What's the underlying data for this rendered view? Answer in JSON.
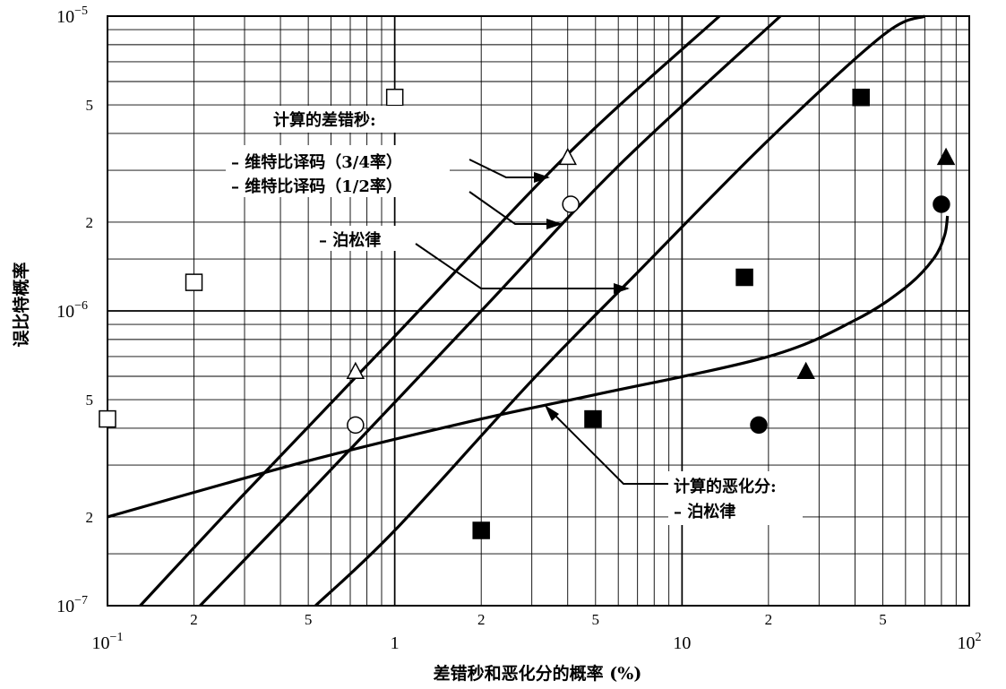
{
  "chart_data": {
    "type": "line",
    "xscale": "log",
    "yscale": "log",
    "xlim": [
      0.1,
      100
    ],
    "ylim": [
      1e-07,
      1e-05
    ],
    "grid": true,
    "xlabel": "差错秒和恶化分的概率 (%)",
    "ylabel": "误比特概率",
    "x_decade_labels": [
      {
        "x": 0.1,
        "base": "10",
        "exp": "−1"
      },
      {
        "x": 1,
        "base": "1",
        "exp": ""
      },
      {
        "x": 10,
        "base": "10",
        "exp": ""
      },
      {
        "x": 100,
        "base": "10",
        "exp": "2"
      }
    ],
    "x_minor_labels": [
      {
        "x": 0.2,
        "text": "2"
      },
      {
        "x": 0.5,
        "text": "5"
      },
      {
        "x": 2,
        "text": "2"
      },
      {
        "x": 5,
        "text": "5"
      },
      {
        "x": 20,
        "text": "2"
      },
      {
        "x": 50,
        "text": "5"
      }
    ],
    "y_decade_labels": [
      {
        "y": 1e-05,
        "base": "10",
        "exp": "−5"
      },
      {
        "y": 1e-06,
        "base": "10",
        "exp": "−6"
      },
      {
        "y": 1e-07,
        "base": "10",
        "exp": "−7"
      }
    ],
    "y_minor_labels": [
      {
        "y": 5e-06,
        "text": "5"
      },
      {
        "y": 2e-06,
        "text": "2"
      },
      {
        "y": 5e-07,
        "text": "5"
      },
      {
        "y": 2e-07,
        "text": "2"
      }
    ],
    "series": [
      {
        "points": [
          [
            0.13,
            1e-07
          ],
          [
            0.3,
            2.4e-07
          ],
          [
            1,
            8.2e-07
          ],
          [
            4,
            3.4e-06
          ],
          [
            13.5,
            1e-05
          ]
        ]
      },
      {
        "points": [
          [
            0.21,
            1e-07
          ],
          [
            0.5,
            2.4e-07
          ],
          [
            2,
            1e-06
          ],
          [
            6,
            3.1e-06
          ],
          [
            22,
            1e-05
          ]
        ]
      },
      {
        "points": [
          [
            0.53,
            1e-07
          ],
          [
            1,
            1.8e-07
          ],
          [
            3,
            5.8e-07
          ],
          [
            7,
            1.35e-06
          ],
          [
            20,
            3.8e-06
          ],
          [
            50,
            8.6e-06
          ],
          [
            70,
            1e-05
          ]
        ]
      },
      {
        "points": [
          [
            0.1,
            2e-07
          ],
          [
            0.5,
            3.1e-07
          ],
          [
            2,
            4.3e-07
          ],
          [
            5,
            5.2e-07
          ],
          [
            20,
            7e-07
          ],
          [
            40,
            9.3e-07
          ],
          [
            60,
            1.2e-06
          ],
          [
            75,
            1.5e-06
          ],
          [
            82,
            1.8e-06
          ],
          [
            84,
            2.1e-06
          ]
        ]
      }
    ],
    "markers": [
      {
        "shape": "square",
        "fill": "open",
        "x": 0.1,
        "y": 4.3e-07
      },
      {
        "shape": "square",
        "fill": "open",
        "x": 0.2,
        "y": 1.25e-06
      },
      {
        "shape": "square",
        "fill": "open",
        "x": 1,
        "y": 5.3e-06
      },
      {
        "shape": "triangle",
        "fill": "open",
        "x": 0.73,
        "y": 6.2e-07
      },
      {
        "shape": "triangle",
        "fill": "open",
        "x": 4,
        "y": 3.3e-06
      },
      {
        "shape": "circle",
        "fill": "open",
        "x": 0.73,
        "y": 4.1e-07
      },
      {
        "shape": "circle",
        "fill": "open",
        "x": 4.1,
        "y": 2.3e-06
      },
      {
        "shape": "square",
        "fill": "filled",
        "x": 2,
        "y": 1.8e-07
      },
      {
        "shape": "square",
        "fill": "filled",
        "x": 4.9,
        "y": 4.3e-07
      },
      {
        "shape": "square",
        "fill": "filled",
        "x": 16.5,
        "y": 1.3e-06
      },
      {
        "shape": "square",
        "fill": "filled",
        "x": 42,
        "y": 5.3e-06
      },
      {
        "shape": "circle",
        "fill": "filled",
        "x": 18.5,
        "y": 4.1e-07
      },
      {
        "shape": "circle",
        "fill": "filled",
        "x": 80,
        "y": 2.3e-06
      },
      {
        "shape": "triangle",
        "fill": "filled",
        "x": 27,
        "y": 6.2e-07
      },
      {
        "shape": "triangle",
        "fill": "filled",
        "x": 83,
        "y": 3.3e-06
      }
    ],
    "annotations": {
      "es_title": "计算的差错秒:",
      "viterbi_34": "– 维特比译码（3/4率）",
      "viterbi_12": "– 维特比译码（1/2率）",
      "poisson_es": "– 泊松律",
      "dm_title": "计算的恶化分:",
      "poisson_dm": "– 泊松律"
    }
  }
}
